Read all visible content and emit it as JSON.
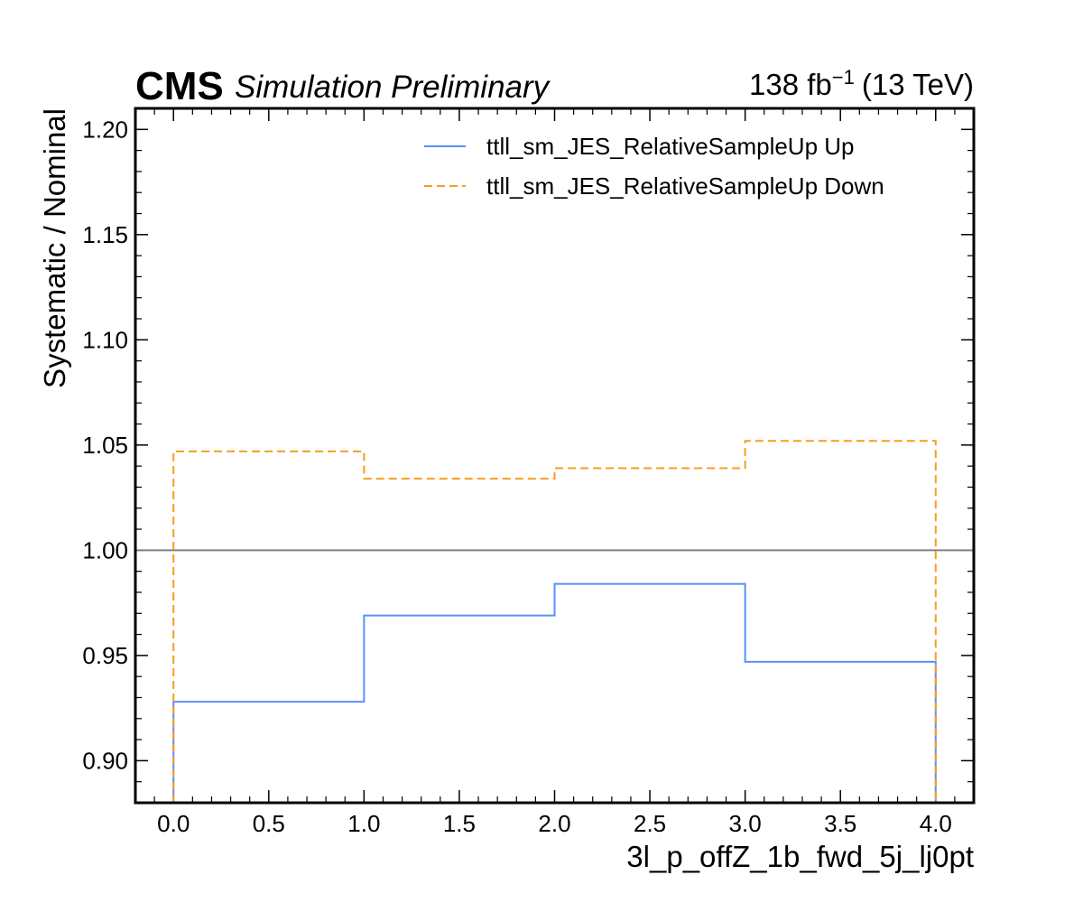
{
  "header": {
    "experiment": "CMS",
    "status": "Simulation Preliminary",
    "lumi_value": "138 fb",
    "lumi_exp": "−1",
    "energy": "(13 TeV)"
  },
  "chart_data": {
    "type": "line",
    "drawstyle": "step",
    "xlabel": "3l_p_offZ_1b_fwd_5j_lj0pt",
    "ylabel": "Systematic / Nominal",
    "xlim": [
      -0.2,
      4.2
    ],
    "ylim": [
      0.88,
      1.21
    ],
    "x_ticks": [
      "0.0",
      "0.5",
      "1.0",
      "1.5",
      "2.0",
      "2.5",
      "3.0",
      "3.5",
      "4.0"
    ],
    "y_ticks": [
      "0.90",
      "0.95",
      "1.00",
      "1.05",
      "1.10",
      "1.15",
      "1.20"
    ],
    "bin_edges": [
      0,
      1,
      2,
      3,
      4
    ],
    "reference_line": 1.0,
    "legend_position": "top-right",
    "grid": false,
    "series": [
      {
        "name": "ttll_sm_JES_RelativeSampleUp Up",
        "values": [
          0.928,
          0.969,
          0.984,
          0.947
        ],
        "color": "#5790fc",
        "style": "solid"
      },
      {
        "name": "ttll_sm_JES_RelativeSampleUp Down",
        "values": [
          1.047,
          1.034,
          1.039,
          1.052
        ],
        "color": "#f89c20",
        "style": "dashed"
      }
    ]
  }
}
